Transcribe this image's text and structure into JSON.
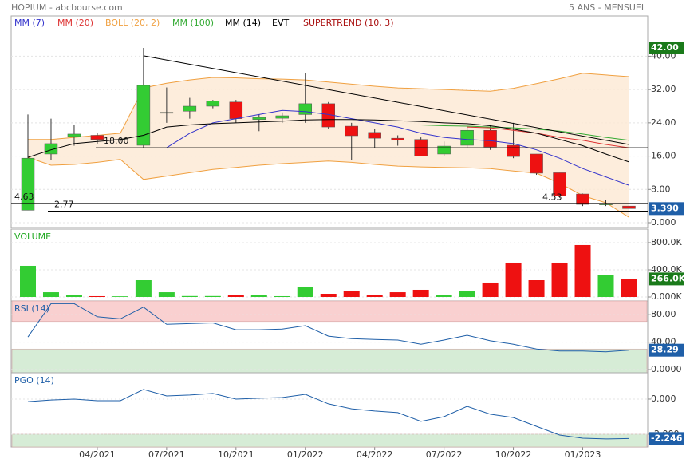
{
  "header": {
    "title": "HOPIUM - abcbourse.com",
    "period": "5 ANS - MENSUEL"
  },
  "chart_data": [
    {
      "type": "candlestick",
      "categories": [
        null,
        null,
        null,
        "04/2021",
        null,
        null,
        "07/2021",
        null,
        null,
        "10/2021",
        null,
        null,
        "01/2022",
        null,
        null,
        "04/2022",
        null,
        null,
        "07/2022",
        null,
        null,
        "10/2022",
        null,
        null,
        "01/2023",
        null,
        null
      ],
      "open": [
        3,
        16.5,
        20.7,
        21,
        20,
        18.6,
        26.5,
        26.8,
        28,
        29,
        24.8,
        25.1,
        26,
        28.6,
        23.2,
        21.7,
        20.3,
        20,
        16.5,
        18.6,
        22.2,
        18.6,
        16.5,
        12,
        6.9,
        4.5,
        4
      ],
      "high": [
        26,
        25,
        23.5,
        21.5,
        20.5,
        42,
        32.5,
        30,
        29.5,
        29.5,
        26,
        26.5,
        36,
        29,
        24,
        22.5,
        21,
        20.5,
        19.5,
        23,
        23.5,
        24,
        16.5,
        12,
        7,
        5.5,
        4.2
      ],
      "low": [
        3,
        15,
        18.5,
        19,
        19.5,
        18,
        24,
        25,
        27.5,
        24,
        22,
        24,
        24,
        22.5,
        15,
        18,
        18.5,
        16,
        16,
        18,
        17.5,
        15.5,
        11.5,
        6,
        4,
        4,
        2.77
      ],
      "close": [
        15.5,
        19,
        21.3,
        20,
        20,
        33,
        26.5,
        28,
        29.2,
        25,
        25.3,
        25.7,
        28.6,
        23,
        20.9,
        20.3,
        19.8,
        16,
        18.4,
        22.2,
        18.2,
        15.9,
        11.9,
        6.5,
        4.4,
        4.5,
        3.39
      ],
      "up_color": "#33cc33",
      "down_color": "#ee1111",
      "series": [
        {
          "name": "MM (7)",
          "color": "#3333cc",
          "values": [
            null,
            null,
            null,
            null,
            null,
            null,
            18,
            21.5,
            24,
            25,
            26,
            27,
            26.7,
            26,
            25,
            24,
            23,
            21.5,
            20.5,
            20,
            19.7,
            19,
            17.5,
            15.5,
            13,
            11,
            9
          ]
        },
        {
          "name": "MM (20)",
          "color": "#dd3333",
          "values": [
            null,
            null,
            null,
            null,
            null,
            null,
            null,
            null,
            null,
            null,
            null,
            null,
            null,
            null,
            null,
            null,
            null,
            null,
            null,
            23,
            22.8,
            22.2,
            21.5,
            20.5,
            19.8,
            18.8,
            18
          ]
        },
        {
          "name": "BOLL (20, 2)",
          "color": "#f0a040",
          "upper": [
            20,
            20,
            20.5,
            21,
            21.5,
            32.4,
            33.5,
            34.3,
            34.9,
            34.8,
            34.6,
            34.5,
            34.3,
            33.8,
            33.3,
            32.8,
            32.4,
            32.2,
            32,
            31.8,
            31.6,
            32.3,
            33.4,
            34.6,
            35.9,
            35.5,
            35.1
          ],
          "lower": [
            15.7,
            13.8,
            14,
            14.5,
            15.2,
            10.4,
            11.2,
            12,
            12.8,
            13.3,
            13.8,
            14.2,
            14.5,
            14.8,
            14.5,
            14,
            13.6,
            13.4,
            13.3,
            13.2,
            13,
            12.4,
            11.9,
            9.5,
            6.5,
            4.8,
            1.3
          ]
        },
        {
          "name": "MM (100)",
          "color": "#33aa33",
          "values": [
            null,
            null,
            null,
            null,
            null,
            null,
            null,
            null,
            null,
            null,
            null,
            null,
            null,
            null,
            null,
            null,
            null,
            23.5,
            23.3,
            23.2,
            23,
            22.8,
            22.5,
            22,
            21.3,
            20.5,
            19.8
          ]
        },
        {
          "name": "MM (14)",
          "color": "#000000",
          "values": [
            15.7,
            17.5,
            19,
            19.5,
            20,
            21,
            23,
            23.5,
            23.8,
            24,
            24.2,
            24.4,
            24.7,
            24.8,
            24.8,
            24.7,
            24.5,
            24.3,
            24,
            23.8,
            23.3,
            22.5,
            21.5,
            20,
            18.5,
            16.5,
            14.6
          ]
        },
        {
          "name": "EVT",
          "color": "#000000"
        },
        {
          "name": "SUPERTREND (10, 3)",
          "color": "#aa1111"
        }
      ],
      "trendline": {
        "from": 5,
        "to": 26,
        "values": [
          40.1,
          18.8
        ]
      },
      "levels": [
        {
          "value": 18,
          "label": "18.00"
        },
        {
          "value": 4.63,
          "label": "4.63"
        },
        {
          "value": 2.77,
          "label": "2.77"
        },
        {
          "value": 4.53,
          "label": "4.53"
        }
      ],
      "ylim": [
        -1.15,
        49.67
      ],
      "yticks": [
        {
          "value": 40,
          "label": "40.00"
        },
        {
          "value": 32,
          "label": "32.00"
        },
        {
          "value": 24,
          "label": "24.00"
        },
        {
          "value": 16,
          "label": "16.00"
        },
        {
          "value": 8,
          "label": "8.00"
        },
        {
          "value": 0,
          "label": "0.000"
        }
      ],
      "badges": [
        {
          "value": 42,
          "label": "42.00",
          "color": "#1a7a1a"
        },
        {
          "value": 3.39,
          "label": "3.390",
          "color": "#1f5fa8"
        }
      ]
    },
    {
      "type": "bar",
      "title": "VOLUME",
      "title_color": "#22aa22",
      "values": [
        459000,
        70000,
        24000,
        12000,
        10000,
        247000,
        70000,
        14000,
        14000,
        24000,
        24000,
        12000,
        153000,
        47000,
        94000,
        35000,
        70000,
        106000,
        35000,
        94000,
        212000,
        506000,
        247000,
        506000,
        765000,
        329000,
        266000
      ],
      "ylim": [
        -70600,
        1000000
      ],
      "yticks": [
        {
          "value": 0,
          "label": "0.000K"
        },
        {
          "value": 400000,
          "label": "400.0K"
        },
        {
          "value": 800000,
          "label": "800.0K"
        }
      ],
      "badges": [
        {
          "value": 266000,
          "label": "266.0K",
          "color": "#1a7a1a"
        }
      ]
    },
    {
      "type": "line",
      "title": "RSI (14)",
      "title_color": "#1f5fa8",
      "color": "#1f5fa8",
      "values": [
        47.5,
        96,
        96,
        77,
        74,
        91,
        66,
        67,
        68,
        58,
        58,
        59,
        64,
        48.7,
        45,
        44,
        43,
        37,
        43,
        50,
        42,
        37,
        30,
        27,
        27,
        26,
        28.29
      ],
      "bands": [
        {
          "range": [
            70,
            100
          ],
          "color": "#f9d0d0"
        },
        {
          "range": [
            -4.6,
            30
          ],
          "color": "#d6ecd6"
        }
      ],
      "ylim": [
        -4.6,
        100
      ],
      "yticks": [
        {
          "value": 80,
          "label": "80.00"
        },
        {
          "value": 40,
          "label": "40.00"
        },
        {
          "value": 0,
          "label": "0.0000"
        }
      ],
      "badges": [
        {
          "value": 28.29,
          "label": "28.29",
          "color": "#1f5fa8"
        }
      ]
    },
    {
      "type": "line",
      "title": "PGO (14)",
      "title_color": "#1f5fa8",
      "color": "#1f5fa8",
      "values": [
        -0.14,
        -0.05,
        0,
        -0.09,
        -0.09,
        0.55,
        0.18,
        0.23,
        0.32,
        0,
        0.05,
        0.09,
        0.27,
        -0.27,
        -0.55,
        -0.68,
        -0.77,
        -1.27,
        -1,
        -0.41,
        -0.86,
        -1.05,
        -1.55,
        -2.05,
        -2.23,
        -2.27,
        -2.246
      ],
      "bands": [
        {
          "range": [
            -2.73,
            -2
          ],
          "color": "#d6ecd6"
        }
      ],
      "ylim": [
        -2.73,
        1.5
      ],
      "yticks": [
        {
          "value": 0,
          "label": "0.000"
        },
        {
          "value": -2,
          "label": "-2.000"
        }
      ],
      "badges": [
        {
          "value": -2.246,
          "label": "-2.246",
          "color": "#1f5fa8"
        }
      ]
    }
  ]
}
